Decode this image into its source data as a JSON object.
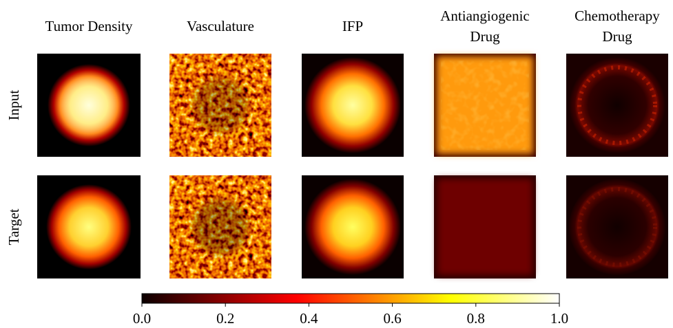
{
  "figure": {
    "columns": [
      {
        "title": [
          "Tumor Density"
        ]
      },
      {
        "title": [
          "Vasculature"
        ]
      },
      {
        "title": [
          "IFP"
        ]
      },
      {
        "title": [
          "Antiangiogenic",
          "Drug"
        ]
      },
      {
        "title": [
          "Chemotherapy",
          "Drug"
        ]
      }
    ],
    "rows": [
      "Input",
      "Target"
    ],
    "colorbar": {
      "lim": [
        0,
        1
      ],
      "ticks": [
        {
          "value": 0,
          "label": "0.0"
        },
        {
          "value": 0.2,
          "label": "0.2"
        },
        {
          "value": 0.4,
          "label": "0.4"
        },
        {
          "value": 0.6,
          "label": "0.6"
        },
        {
          "value": 0.8,
          "label": "0.8"
        },
        {
          "value": 1,
          "label": "1.0"
        }
      ]
    }
  }
}
